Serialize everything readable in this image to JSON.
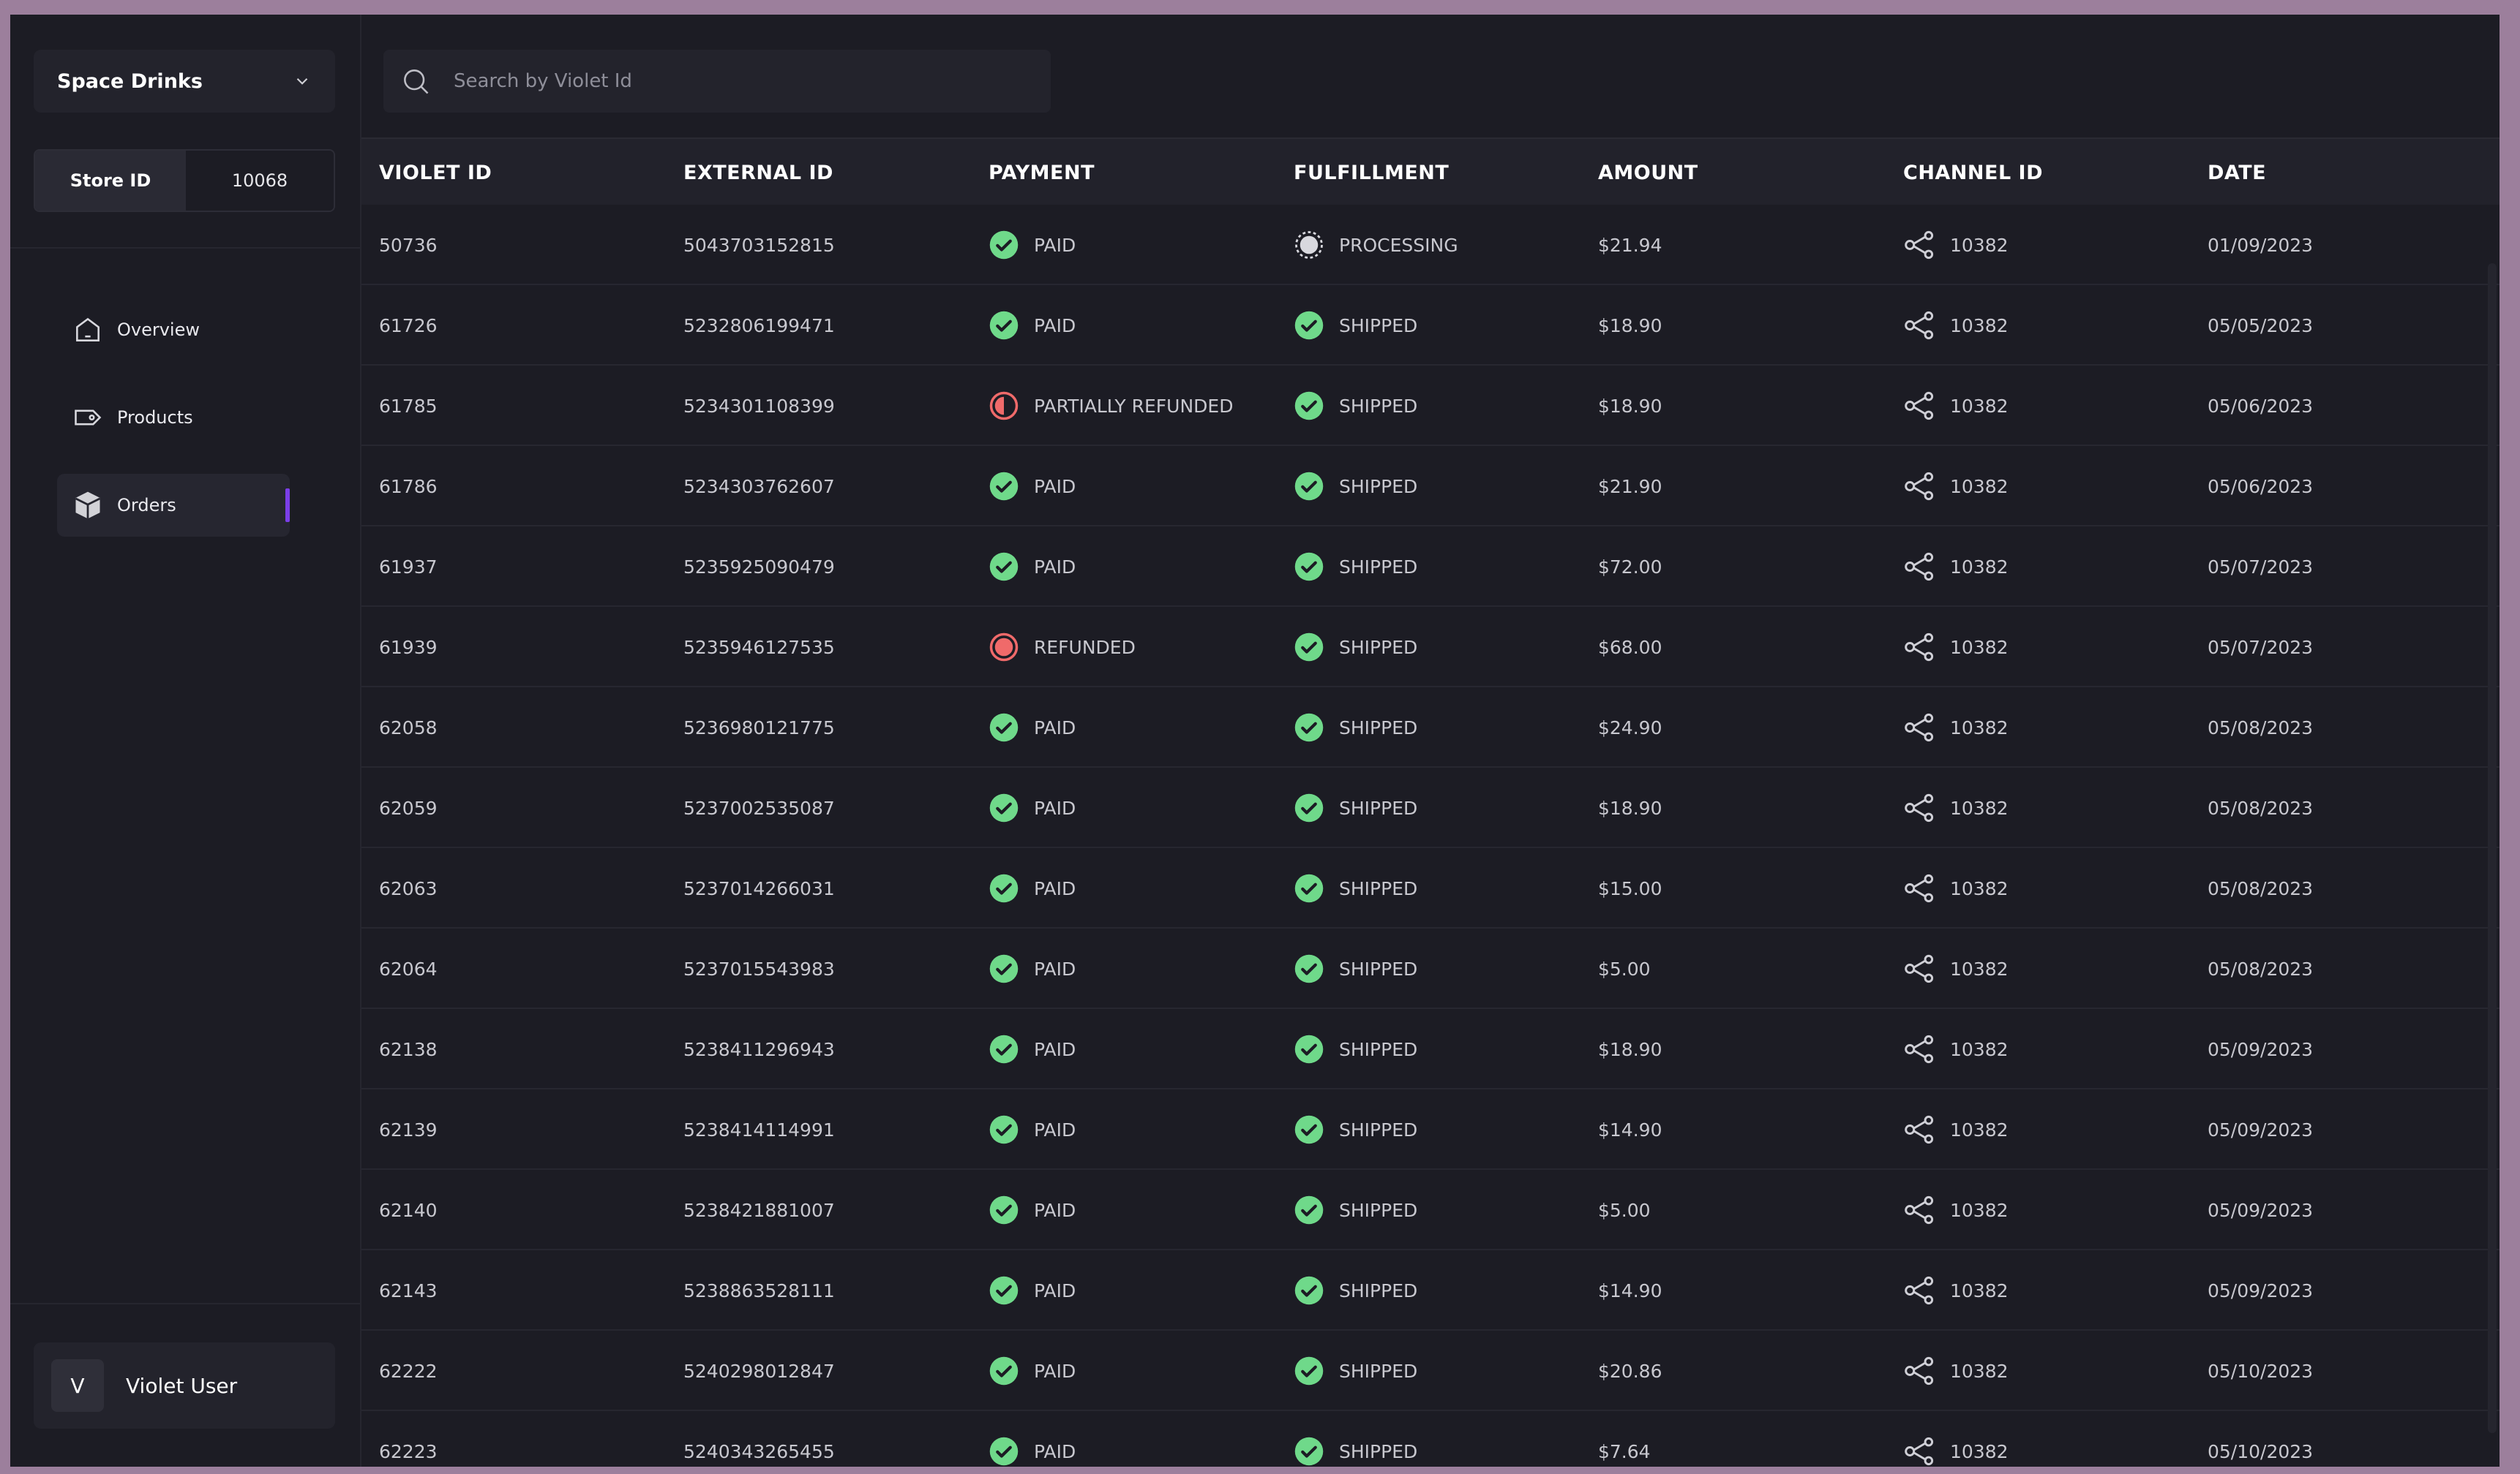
{
  "sidebar": {
    "store_name": "Space Drinks",
    "store_id_label": "Store ID",
    "store_id_value": "10068",
    "nav": [
      {
        "label": "Overview",
        "icon": "home-icon",
        "active": false
      },
      {
        "label": "Products",
        "icon": "tag-icon",
        "active": false
      },
      {
        "label": "Orders",
        "icon": "box-icon",
        "active": true
      }
    ],
    "user": {
      "initial": "V",
      "name": "Violet User"
    }
  },
  "search": {
    "placeholder": "Search by Violet Id",
    "value": ""
  },
  "table": {
    "columns": [
      "VIOLET ID",
      "EXTERNAL ID",
      "PAYMENT",
      "FULFILLMENT",
      "AMOUNT",
      "CHANNEL ID",
      "DATE"
    ],
    "rows": [
      {
        "violet_id": "50736",
        "external_id": "5043703152815",
        "payment": "PAID",
        "fulfillment": "PROCESSING",
        "amount": "$21.94",
        "channel_id": "10382",
        "date": "01/09/2023"
      },
      {
        "violet_id": "61726",
        "external_id": "5232806199471",
        "payment": "PAID",
        "fulfillment": "SHIPPED",
        "amount": "$18.90",
        "channel_id": "10382",
        "date": "05/05/2023"
      },
      {
        "violet_id": "61785",
        "external_id": "5234301108399",
        "payment": "PARTIALLY REFUNDED",
        "fulfillment": "SHIPPED",
        "amount": "$18.90",
        "channel_id": "10382",
        "date": "05/06/2023"
      },
      {
        "violet_id": "61786",
        "external_id": "5234303762607",
        "payment": "PAID",
        "fulfillment": "SHIPPED",
        "amount": "$21.90",
        "channel_id": "10382",
        "date": "05/06/2023"
      },
      {
        "violet_id": "61937",
        "external_id": "5235925090479",
        "payment": "PAID",
        "fulfillment": "SHIPPED",
        "amount": "$72.00",
        "channel_id": "10382",
        "date": "05/07/2023"
      },
      {
        "violet_id": "61939",
        "external_id": "5235946127535",
        "payment": "REFUNDED",
        "fulfillment": "SHIPPED",
        "amount": "$68.00",
        "channel_id": "10382",
        "date": "05/07/2023"
      },
      {
        "violet_id": "62058",
        "external_id": "5236980121775",
        "payment": "PAID",
        "fulfillment": "SHIPPED",
        "amount": "$24.90",
        "channel_id": "10382",
        "date": "05/08/2023"
      },
      {
        "violet_id": "62059",
        "external_id": "5237002535087",
        "payment": "PAID",
        "fulfillment": "SHIPPED",
        "amount": "$18.90",
        "channel_id": "10382",
        "date": "05/08/2023"
      },
      {
        "violet_id": "62063",
        "external_id": "5237014266031",
        "payment": "PAID",
        "fulfillment": "SHIPPED",
        "amount": "$15.00",
        "channel_id": "10382",
        "date": "05/08/2023"
      },
      {
        "violet_id": "62064",
        "external_id": "5237015543983",
        "payment": "PAID",
        "fulfillment": "SHIPPED",
        "amount": "$5.00",
        "channel_id": "10382",
        "date": "05/08/2023"
      },
      {
        "violet_id": "62138",
        "external_id": "5238411296943",
        "payment": "PAID",
        "fulfillment": "SHIPPED",
        "amount": "$18.90",
        "channel_id": "10382",
        "date": "05/09/2023"
      },
      {
        "violet_id": "62139",
        "external_id": "5238414114991",
        "payment": "PAID",
        "fulfillment": "SHIPPED",
        "amount": "$14.90",
        "channel_id": "10382",
        "date": "05/09/2023"
      },
      {
        "violet_id": "62140",
        "external_id": "5238421881007",
        "payment": "PAID",
        "fulfillment": "SHIPPED",
        "amount": "$5.00",
        "channel_id": "10382",
        "date": "05/09/2023"
      },
      {
        "violet_id": "62143",
        "external_id": "5238863528111",
        "payment": "PAID",
        "fulfillment": "SHIPPED",
        "amount": "$14.90",
        "channel_id": "10382",
        "date": "05/09/2023"
      },
      {
        "violet_id": "62222",
        "external_id": "5240298012847",
        "payment": "PAID",
        "fulfillment": "SHIPPED",
        "amount": "$20.86",
        "channel_id": "10382",
        "date": "05/10/2023"
      },
      {
        "violet_id": "62223",
        "external_id": "5240343265455",
        "payment": "PAID",
        "fulfillment": "SHIPPED",
        "amount": "$7.64",
        "channel_id": "10382",
        "date": "05/10/2023"
      }
    ]
  },
  "colors": {
    "accent": "#7b3ee8",
    "success": "#6fd98a",
    "refund": "#f06a6a",
    "background": "#1c1c24"
  }
}
